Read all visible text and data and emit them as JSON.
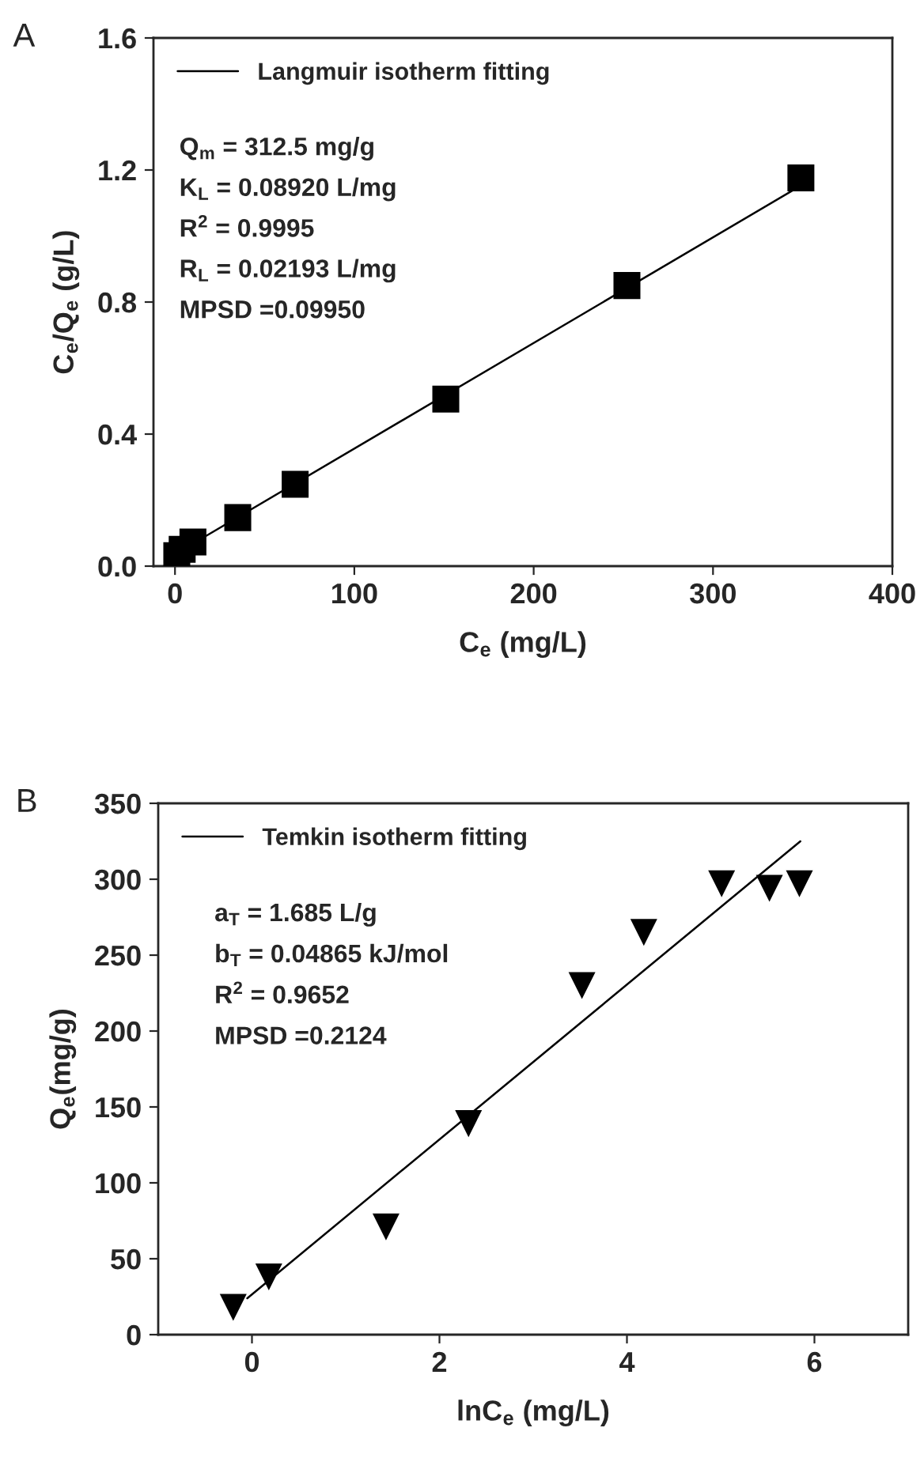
{
  "chart_data": [
    {
      "type": "scatter",
      "title": "A",
      "xlabel": "C$_{e}$ (mg/L)",
      "ylabel": "C$_{e}$/Q$_{e}$ (g/L)",
      "xlim": [
        -12,
        400
      ],
      "xticks": [
        0,
        100,
        200,
        300,
        400
      ],
      "ylim": [
        0,
        1.6
      ],
      "yticks": [
        {
          "value": 0,
          "label": "0.0"
        },
        0.4,
        0.8,
        1.2,
        1.6
      ],
      "grid": false,
      "legend": "top left",
      "series": [
        {
          "marker": "square",
          "color": "#000000",
          "x": [
            1,
            4,
            10,
            35,
            67,
            151,
            252,
            349
          ],
          "values": [
            0.032,
            0.051,
            0.073,
            0.147,
            0.248,
            0.506,
            0.85,
            1.176
          ]
        },
        {
          "type": "line",
          "name": "Langmuir isotherm fitting",
          "color": "#000000",
          "line_style": "solid",
          "marker": "none",
          "x": [
            0,
            350
          ],
          "values": [
            0.036,
            1.156
          ]
        }
      ],
      "annotations": [
        "Q$_{m}$ = 312.5 mg/g",
        "K$_{L}$ = 0.08920 L/mg",
        "R$^{2}$ = 0.9995",
        "R$_{L}$ = 0.02193 L/mg",
        "MPSD =0.09950"
      ]
    },
    {
      "type": "scatter",
      "title": "B",
      "xlabel": "lnC$_{e}$ (mg/L)",
      "ylabel": "Q$_{e}$(mg/g)",
      "xlim": [
        -1,
        7
      ],
      "xticks": [
        0,
        2,
        4,
        6
      ],
      "ylim": [
        0,
        350
      ],
      "yticks": [
        0,
        50,
        100,
        150,
        200,
        250,
        300,
        350
      ],
      "grid": false,
      "legend": "top left",
      "series": [
        {
          "marker": "triangle",
          "color": "#000000",
          "x": [
            -0.2,
            0.18,
            1.43,
            2.31,
            3.52,
            4.18,
            5.01,
            5.52,
            5.84
          ],
          "values": [
            18,
            38,
            71,
            139,
            230,
            265,
            297,
            294,
            297
          ]
        },
        {
          "type": "line",
          "name": "Temkin isotherm fitting",
          "color": "#000000",
          "line_style": "solid",
          "marker": "none",
          "x": [
            -0.05,
            5.85
          ],
          "values": [
            24,
            325
          ]
        }
      ],
      "annotations": [
        "a$_{T}$ = 1.685 L/g",
        "b$_{T}$ = 0.04865 kJ/mol",
        "R$^{2}$ = 0.9652",
        "MPSD =0.2124"
      ]
    }
  ]
}
